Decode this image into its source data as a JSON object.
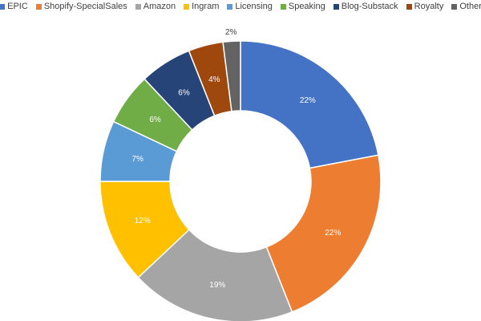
{
  "chart_data": {
    "type": "pie",
    "subtype": "donut",
    "title": "",
    "legend_position": "top",
    "slices": [
      {
        "label": "EPIC",
        "value": 22,
        "value_label": "22%",
        "color": "#4472c4"
      },
      {
        "label": "Shopify-SpecialSales",
        "value": 22,
        "value_label": "22%",
        "color": "#ed7d31"
      },
      {
        "label": "Amazon",
        "value": 19,
        "value_label": "19%",
        "color": "#a5a5a5"
      },
      {
        "label": "Ingram",
        "value": 12,
        "value_label": "12%",
        "color": "#ffc000"
      },
      {
        "label": "Licensing",
        "value": 7,
        "value_label": "7%",
        "color": "#5b9bd5"
      },
      {
        "label": "Speaking",
        "value": 6,
        "value_label": "6%",
        "color": "#70ad47"
      },
      {
        "label": "Blog-Substack",
        "value": 6,
        "value_label": "6%",
        "color": "#264478"
      },
      {
        "label": "Royalty",
        "value": 4,
        "value_label": "4%",
        "color": "#9e480e"
      },
      {
        "label": "Other",
        "value": 2,
        "value_label": "2%",
        "color": "#636363"
      }
    ]
  }
}
